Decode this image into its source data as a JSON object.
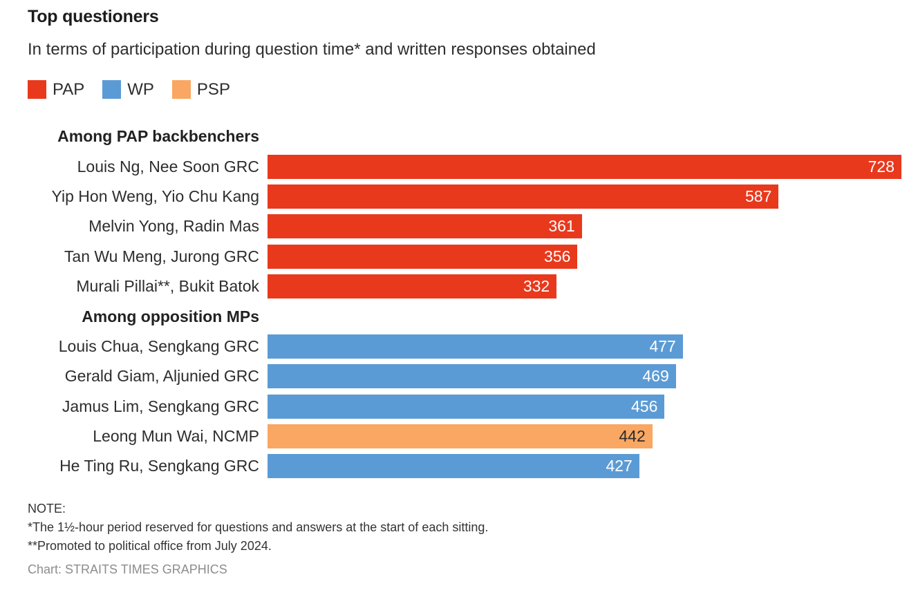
{
  "header": {
    "title": "Top questioners",
    "subtitle": "In terms of participation during question time* and written responses obtained"
  },
  "legend": [
    {
      "label": "PAP",
      "party": "PAP"
    },
    {
      "label": "WP",
      "party": "WP"
    },
    {
      "label": "PSP",
      "party": "PSP"
    }
  ],
  "party_colors": {
    "PAP": {
      "bar": "#e8391d",
      "text": "#ffffff"
    },
    "WP": {
      "bar": "#5b9bd5",
      "text": "#ffffff"
    },
    "PSP": {
      "bar": "#f9a762",
      "text": "#2b2b2b"
    }
  },
  "chart_data": {
    "type": "bar",
    "orientation": "horizontal",
    "max_value": 728,
    "title": "Top questioners",
    "subtitle": "In terms of participation during question time* and written responses obtained",
    "value_labels": "inside-end",
    "sections": [
      {
        "header": "Among PAP backbenchers",
        "rows": [
          {
            "label": "Louis Ng, Nee Soon GRC",
            "value": 728,
            "party": "PAP"
          },
          {
            "label": "Yip Hon Weng, Yio Chu Kang",
            "value": 587,
            "party": "PAP"
          },
          {
            "label": "Melvin Yong, Radin Mas",
            "value": 361,
            "party": "PAP"
          },
          {
            "label": "Tan Wu Meng, Jurong GRC",
            "value": 356,
            "party": "PAP"
          },
          {
            "label": "Murali Pillai**, Bukit Batok",
            "value": 332,
            "party": "PAP"
          }
        ]
      },
      {
        "header": "Among opposition MPs",
        "rows": [
          {
            "label": "Louis Chua, Sengkang GRC",
            "value": 477,
            "party": "WP"
          },
          {
            "label": "Gerald Giam, Aljunied GRC",
            "value": 469,
            "party": "WP"
          },
          {
            "label": "Jamus Lim, Sengkang GRC",
            "value": 456,
            "party": "WP"
          },
          {
            "label": "Leong Mun Wai, NCMP",
            "value": 442,
            "party": "PSP"
          },
          {
            "label": "He Ting Ru, Sengkang GRC",
            "value": 427,
            "party": "WP"
          }
        ]
      }
    ]
  },
  "footer": {
    "note_title": "NOTE:",
    "notes": [
      "*The 1½-hour period reserved for questions and answers at the start of each sitting.",
      "**Promoted to political office from July 2024."
    ],
    "credit": "Chart: STRAITS TIMES GRAPHICS"
  }
}
